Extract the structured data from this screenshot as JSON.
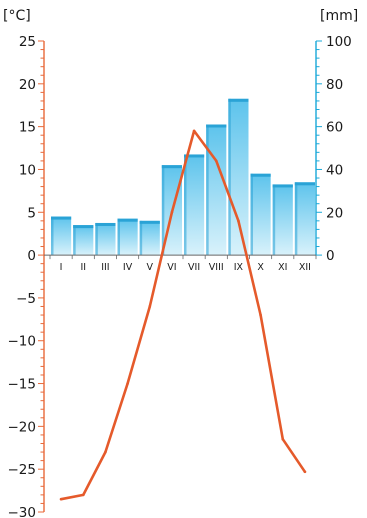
{
  "chart_data": {
    "type": "climate-diagram",
    "categories": [
      "I",
      "II",
      "III",
      "IV",
      "V",
      "VI",
      "VII",
      "VIII",
      "IX",
      "X",
      "XI",
      "XII"
    ],
    "left_axis": {
      "label": "[°C]",
      "ylim": [
        -30,
        25
      ],
      "ticks": [
        25,
        20,
        15,
        10,
        5,
        0,
        -5,
        -10,
        -15,
        -20,
        -25,
        -30
      ],
      "tick_labels": [
        "25",
        "20",
        "15",
        "10",
        "5",
        "0",
        "−5",
        "−10",
        "−15",
        "−20",
        "−25",
        "−30"
      ],
      "color": "#e8693a"
    },
    "right_axis": {
      "label": "[mm]",
      "ylim": [
        0,
        100
      ],
      "ticks": [
        100,
        80,
        60,
        40,
        20,
        0
      ],
      "tick_labels": [
        "100",
        "80",
        "60",
        "40",
        "20",
        "0"
      ],
      "color": "#1aa8d8"
    },
    "series": [
      {
        "type": "bar",
        "axis": "right",
        "values": [
          18,
          14,
          15,
          17,
          16,
          42,
          47,
          61,
          73,
          38,
          33,
          34
        ],
        "color": "#5cc3ec"
      },
      {
        "type": "line",
        "axis": "left",
        "values": [
          -28.5,
          -28,
          -23,
          -15,
          -6,
          5,
          14.5,
          11,
          4,
          -7,
          -21.5,
          -25.3
        ],
        "color": "#e55a2b"
      }
    ]
  }
}
